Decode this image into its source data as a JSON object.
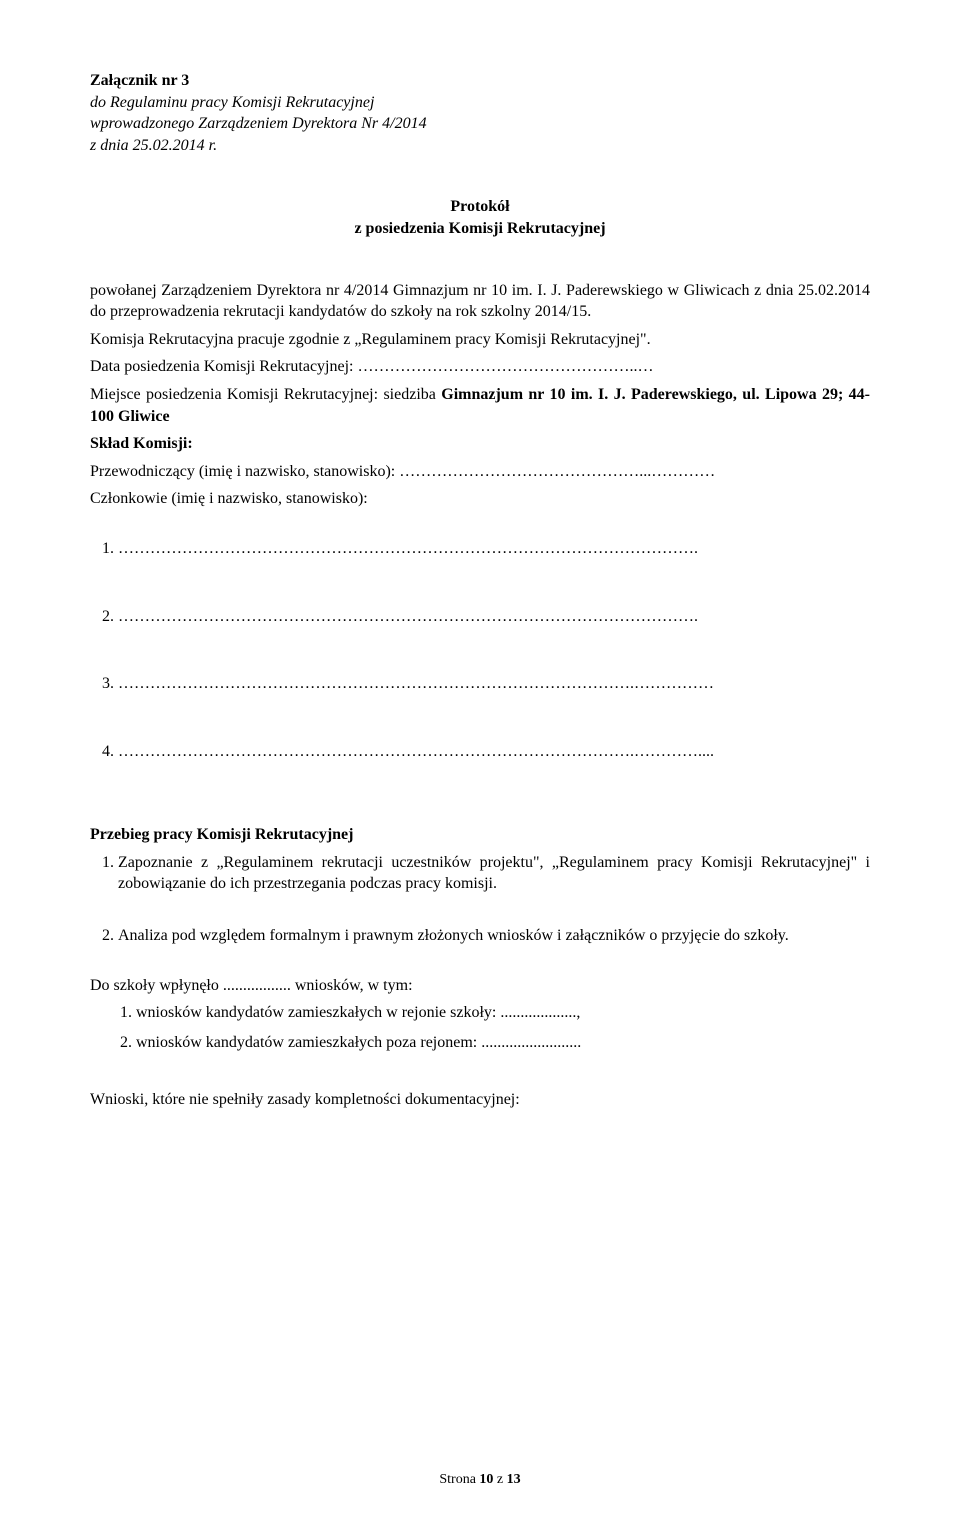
{
  "header": {
    "attachment": "Załącznik nr 3",
    "line1": "do Regulaminu pracy Komisji Rekrutacyjnej",
    "line2": "wprowadzonego Zarządzeniem Dyrektora Nr 4/2014",
    "line3": "z dnia 25.02.2014 r."
  },
  "title": {
    "line1": "Protokół",
    "line2": "z  posiedzenia Komisji Rekrutacyjnej"
  },
  "intro": {
    "para1": "powołanej Zarządzeniem Dyrektora nr 4/2014 Gimnazjum nr 10 im. I. J. Paderewskiego w Gliwicach z dnia 25.02.2014 do przeprowadzenia rekrutacji kandydatów do szkoły na rok szkolny 2014/15.",
    "para2": "Komisja Rekrutacyjna pracuje zgodnie z „Regulaminem pracy Komisji Rekrutacyjnej\".",
    "date_label": "Data posiedzenia Komisji Rekrutacyjnej: ……………………………………………..…",
    "place_prefix": "Miejsce posiedzenia Komisji Rekrutacyjnej: siedziba ",
    "place_bold": "Gimnazjum nr 10 im. I. J. Paderewskiego, ul. Lipowa 29; 44-100 Gliwice",
    "sklad": "Skład Komisji:",
    "chair": "Przewodniczący (imię i nazwisko, stanowisko): ………………………………………...…………",
    "members_label": "Członkowie (imię i nazwisko, stanowisko):"
  },
  "members": [
    "……………………………………………………………………………………………….",
    "……………………………………………………………………………………………….",
    "…………………………………………………………………………………….……………",
    "…………………………………………………………………………………….…………...."
  ],
  "proceedings": {
    "heading": "Przebieg pracy Komisji Rekrutacyjnej",
    "item1": "Zapoznanie z „Regulaminem rekrutacji uczestników projektu\", „Regulaminem pracy Komisji Rekrutacyjnej\" i zobowiązanie do ich przestrzegania podczas pracy komisji.",
    "item2": "Analiza pod względem formalnym i prawnym złożonych wniosków i załączników o przyjęcie do szkoły.",
    "applied": "Do szkoły wpłynęło ................. wniosków, w tym:",
    "sub1": "wniosków kandydatów zamieszkałych w rejonie szkoły: ...................,",
    "sub2": "wniosków kandydatów zamieszkałych poza rejonem: .........................",
    "incomplete": "Wnioski, które nie spełniły zasady kompletności dokumentacyjnej:"
  },
  "footer": {
    "page_prefix": "Strona ",
    "page_bold": "10",
    "page_suffix": " z ",
    "page_total": "13"
  }
}
